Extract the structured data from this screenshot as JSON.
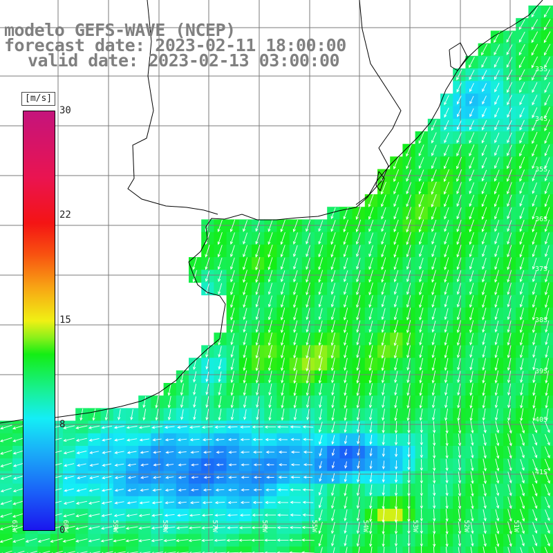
{
  "title": {
    "line1": "modelo GEFS-WAVE (NCEP)",
    "line2": "forecast date: 2023-02-11 18:00:00",
    "line3": "valid date: 2023-02-13 03:00:00"
  },
  "legend": {
    "unit": "[m/s]",
    "ticks": [
      "30",
      "22",
      "15",
      "8",
      "0"
    ],
    "colors": [
      "#1a16ee",
      "#1aa8f8",
      "#14eef6",
      "#14ee14",
      "#f0f014",
      "#f85010",
      "#f41414",
      "#c4147c"
    ]
  },
  "grid": {
    "lat_labels": [
      "33S",
      "34S",
      "35S",
      "36S",
      "37S",
      "38S",
      "39S",
      "40S",
      "41S"
    ],
    "lon_labels": [
      "61W",
      "60W",
      "59W",
      "58W",
      "57W",
      "56W",
      "55W",
      "54W",
      "53W",
      "52W",
      "51W"
    ]
  },
  "map": {
    "land_color": "#ffffff",
    "coastline_color": "#000000",
    "arrow_color": "#ffffff"
  }
}
